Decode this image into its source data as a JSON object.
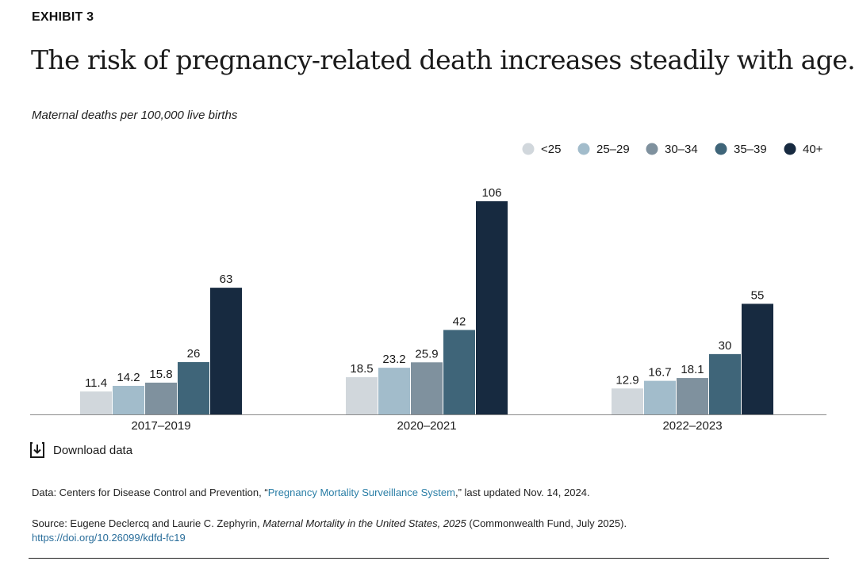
{
  "header": {
    "exhibit": "EXHIBIT 3",
    "title": "The risk of pregnancy-related death increases steadily with age.",
    "subtitle": "Maternal deaths per 100,000 live births"
  },
  "download": {
    "label": "Download data",
    "icon": "download-icon"
  },
  "notes": {
    "data_prefix": "Data: Centers for Disease Control and Prevention, “",
    "data_link": "Pregnancy Mortality Surveillance System",
    "data_suffix": ",” last updated Nov. 14, 2024.",
    "source_prefix": "Source: Eugene Declercq and Laurie C. Zephyrin, ",
    "source_title": "Maternal Mortality in the United States, 2025",
    "source_suffix": " (Commonwealth Fund, July 2025).",
    "doi": "https://doi.org/10.26099/kdfd-fc19"
  },
  "chart_data": {
    "type": "bar",
    "categories": [
      "2017–2019",
      "2020–2021",
      "2022–2023"
    ],
    "series": [
      {
        "name": "<25",
        "color": "#d1d7dc",
        "values": [
          11.4,
          18.5,
          12.9
        ],
        "labels": [
          "11.4",
          "18.5",
          "12.9"
        ]
      },
      {
        "name": "25–29",
        "color": "#a2bccb",
        "values": [
          14.2,
          23.2,
          16.7
        ],
        "labels": [
          "14.2",
          "23.2",
          "16.7"
        ]
      },
      {
        "name": "30–34",
        "color": "#7f919e",
        "values": [
          15.8,
          25.9,
          18.1
        ],
        "labels": [
          "15.8",
          "25.9",
          "18.1"
        ]
      },
      {
        "name": "35–39",
        "color": "#3f6579",
        "values": [
          26,
          42,
          30
        ],
        "labels": [
          "26",
          "42",
          "30"
        ]
      },
      {
        "name": "40+",
        "color": "#172a40",
        "values": [
          63,
          106,
          55
        ],
        "labels": [
          "63",
          "106",
          "55"
        ]
      }
    ],
    "ylim": [
      0,
      106
    ],
    "grid": false,
    "legend": "top-right",
    "xlabel": "",
    "ylabel": ""
  }
}
